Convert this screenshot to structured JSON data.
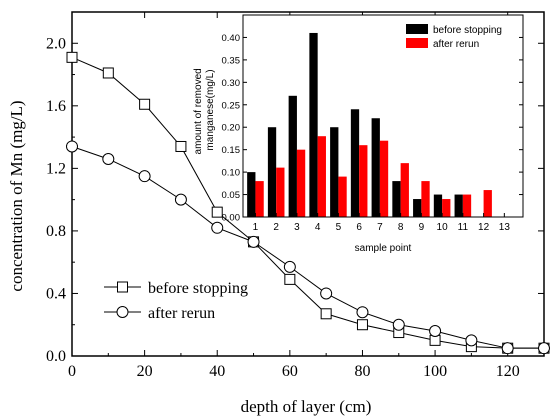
{
  "chart_data": [
    {
      "type": "line",
      "title": "",
      "xlabel": "depth of layer (cm)",
      "ylabel": "concentration of Mn (mg/L)",
      "xlim": [
        0,
        130
      ],
      "ylim": [
        0,
        2.2
      ],
      "x_ticks": [
        0,
        20,
        40,
        60,
        80,
        100,
        120
      ],
      "x_tick_labels": [
        "0",
        "20",
        "40",
        "60",
        "80",
        "100",
        "120"
      ],
      "y_ticks": [
        0.0,
        0.4,
        0.8,
        1.2,
        1.6,
        2.0
      ],
      "y_tick_labels": [
        "0.0",
        "0.4",
        "0.8",
        "1.2",
        "1.6",
        "2.0"
      ],
      "legend_position": "bottom-left",
      "series": [
        {
          "name": "before stopping",
          "marker": "square",
          "x": [
            0,
            10,
            20,
            30,
            40,
            50,
            60,
            70,
            80,
            90,
            100,
            110,
            120,
            130
          ],
          "values": [
            1.91,
            1.81,
            1.61,
            1.34,
            0.92,
            0.73,
            0.49,
            0.27,
            0.2,
            0.15,
            0.1,
            0.06,
            0.05,
            0.05
          ]
        },
        {
          "name": "after rerun",
          "marker": "circle",
          "x": [
            0,
            10,
            20,
            30,
            40,
            50,
            60,
            70,
            80,
            90,
            100,
            110,
            120,
            130
          ],
          "values": [
            1.34,
            1.26,
            1.15,
            1.0,
            0.82,
            0.73,
            0.57,
            0.4,
            0.28,
            0.2,
            0.16,
            0.1,
            0.05,
            0.05
          ]
        }
      ]
    },
    {
      "type": "bar",
      "title": "",
      "xlabel": "sample point",
      "ylabel": "amount of removed manganese(mg/L)",
      "ylabel_lines": [
        "amount of removed",
        "manganese(mg/L)"
      ],
      "categories": [
        "1",
        "2",
        "3",
        "4",
        "5",
        "6",
        "7",
        "8",
        "9",
        "10",
        "11",
        "12",
        "13"
      ],
      "ylim": [
        0,
        0.45
      ],
      "y_ticks": [
        0.0,
        0.05,
        0.1,
        0.15,
        0.2,
        0.25,
        0.3,
        0.35,
        0.4
      ],
      "y_tick_labels": [
        "0.00",
        "0.05",
        "0.10",
        "0.15",
        "0.20",
        "0.25",
        "0.30",
        "0.35",
        "0.40"
      ],
      "legend_position": "top-right",
      "series": [
        {
          "name": "before stopping",
          "color": "#000000",
          "values": [
            0.1,
            0.2,
            0.27,
            0.41,
            0.2,
            0.24,
            0.22,
            0.08,
            0.04,
            0.05,
            0.05,
            null,
            null
          ]
        },
        {
          "name": "after rerun",
          "color": "#ff0000",
          "values": [
            0.08,
            0.11,
            0.15,
            0.18,
            0.09,
            0.16,
            0.17,
            0.12,
            0.08,
            0.04,
            0.05,
            0.06,
            null
          ]
        }
      ]
    }
  ]
}
